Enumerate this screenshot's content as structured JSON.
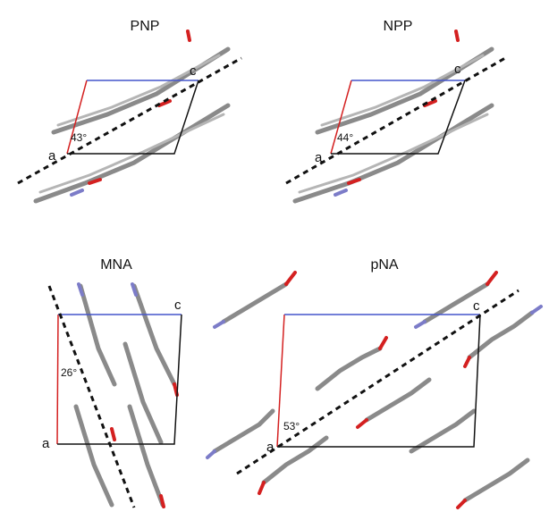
{
  "panels": [
    {
      "title": "PNP",
      "axis_a": "a",
      "axis_c": "c",
      "angle": "43°"
    },
    {
      "title": "NPP",
      "axis_a": "a",
      "axis_c": "c",
      "angle": "44°"
    },
    {
      "title": "MNA",
      "axis_a": "a",
      "axis_c": "c",
      "angle": "26°"
    },
    {
      "title": "pNA",
      "axis_a": "a",
      "axis_c": "c",
      "angle": "53°"
    }
  ]
}
